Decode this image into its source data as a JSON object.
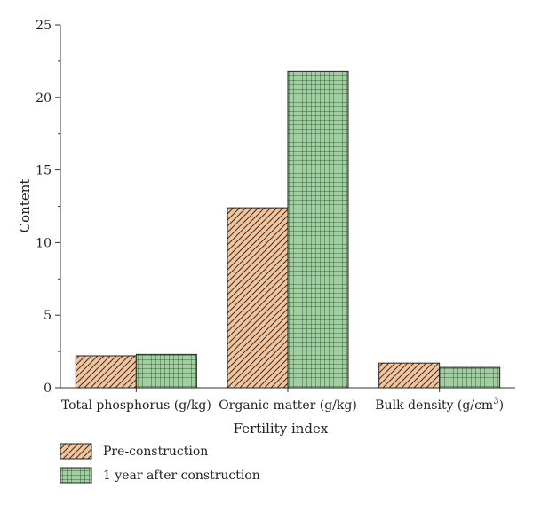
{
  "chart_data": {
    "type": "bar",
    "title": "",
    "xlabel": "Fertility index",
    "ylabel": "Content",
    "ylim": [
      0,
      25
    ],
    "yticks": [
      0,
      5,
      10,
      15,
      20,
      25
    ],
    "categories": [
      {
        "label": "Total phosphorus (g/kg)",
        "sup": ""
      },
      {
        "label": "Organic matter (g/kg)",
        "sup": ""
      },
      {
        "label": "Bulk density (g/cm",
        "sup": "3",
        "suffix": ")"
      }
    ],
    "series": [
      {
        "name": "Pre-construction",
        "values": [
          2.2,
          12.4,
          1.7
        ],
        "color": "#f4c49b",
        "pattern": "hatch"
      },
      {
        "name": "1 year after construction",
        "values": [
          2.3,
          21.8,
          1.4
        ],
        "color": "#9fd09f",
        "pattern": "grid"
      }
    ],
    "legend_position": "bottom-left",
    "grid": false
  }
}
